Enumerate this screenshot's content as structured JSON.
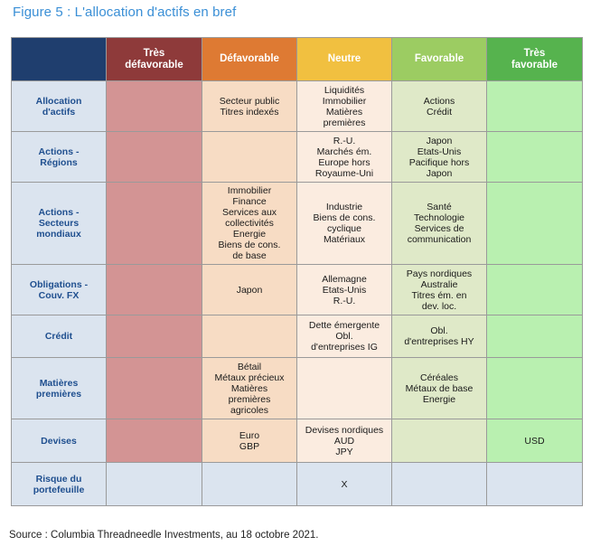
{
  "figure_title": "Figure 5 : L'allocation d'actifs en bref",
  "columns": [
    {
      "label": "Très défavorable",
      "lines": [
        "Très",
        "défavorable"
      ]
    },
    {
      "label": "Défavorable",
      "lines": [
        "Défavorable"
      ]
    },
    {
      "label": "Neutre",
      "lines": [
        "Neutre"
      ]
    },
    {
      "label": "Favorable",
      "lines": [
        "Favorable"
      ]
    },
    {
      "label": "Très favorable",
      "lines": [
        "Très",
        "favorable"
      ]
    }
  ],
  "rows": [
    {
      "label_lines": [
        "Allocation",
        "d'actifs"
      ],
      "cells": [
        [],
        [
          "Secteur public",
          "Titres indexés"
        ],
        [
          "Liquidités",
          "Immobilier",
          "Matières",
          "premières"
        ],
        [
          "Actions",
          "Crédit"
        ],
        []
      ]
    },
    {
      "label_lines": [
        "Actions -",
        "Régions"
      ],
      "cells": [
        [],
        [],
        [
          "R.-U.",
          "Marchés ém.",
          "Europe hors",
          "Royaume-Uni"
        ],
        [
          "Japon",
          "Etats-Unis",
          "Pacifique hors",
          "Japon"
        ],
        []
      ]
    },
    {
      "label_lines": [
        "Actions -",
        "Secteurs",
        "mondiaux"
      ],
      "cells": [
        [],
        [
          "Immobilier",
          "Finance",
          "Services aux",
          "collectivités",
          "Energie",
          "Biens de cons.",
          "de base"
        ],
        [
          "Industrie",
          "Biens de cons.",
          "cyclique",
          "Matériaux"
        ],
        [
          "Santé",
          "Technologie",
          "Services de",
          "communication"
        ],
        []
      ]
    },
    {
      "label_lines": [
        "Obligations -",
        "Couv. FX"
      ],
      "cells": [
        [],
        [
          "Japon"
        ],
        [
          "Allemagne",
          "Etats-Unis",
          "R.-U."
        ],
        [
          "Pays nordiques",
          "Australie",
          "Titres ém. en",
          "dev. loc."
        ],
        []
      ]
    },
    {
      "label_lines": [
        "Crédit"
      ],
      "cells": [
        [],
        [],
        [
          "Dette émergente",
          "Obl.",
          "d'entreprises IG"
        ],
        [
          "Obl.",
          "d'entreprises HY"
        ],
        []
      ]
    },
    {
      "label_lines": [
        "Matières",
        "premières"
      ],
      "cells": [
        [],
        [
          "Bétail",
          "Métaux précieux",
          "Matières",
          "premières",
          "agricoles"
        ],
        [],
        [
          "Céréales",
          "Métaux de base",
          "Energie"
        ],
        []
      ]
    },
    {
      "label_lines": [
        "Devises"
      ],
      "cells": [
        [],
        [
          "Euro",
          "GBP"
        ],
        [
          "Devises nordiques",
          "AUD",
          "JPY"
        ],
        [],
        [
          "USD"
        ]
      ]
    },
    {
      "label_lines": [
        "Risque du",
        "portefeuille"
      ],
      "cells": [
        [],
        [],
        [
          "X"
        ],
        [],
        []
      ]
    }
  ],
  "source": "Source : Columbia Threadneedle Investments, au 18 octobre 2021."
}
